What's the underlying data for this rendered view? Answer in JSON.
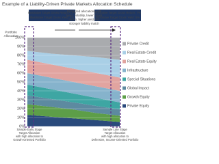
{
  "chart_data": {
    "type": "stacked_area",
    "title": "Example of a Liability-Driven Private Markets Allocation Schedule",
    "y_label": [
      "Portfolio",
      "Allocation"
    ],
    "left_box": [
      "Illustrative Target Gross Return: 10%",
      "Illustrative Target Gross Yield: 3%"
    ],
    "right_box": [
      "Illustrative Target Gross Return: 7%",
      "Illustrative Target Gross Yield: 5%"
    ],
    "middle_note": [
      "Optimized allocations with",
      "lower volatility, lower target",
      "return, higher yield and",
      "stronger liability match"
    ],
    "left_caption": [
      "Sample Early Stage",
      "Target Allocation",
      "with high allocation to",
      "Growth-Oriented Portfolio"
    ],
    "right_caption": [
      "Sample Late Stage",
      "Target Allocation",
      "with high allocation to",
      "Defensive, Income-Oriented Portfolio"
    ],
    "categories": [
      null,
      null,
      null,
      null,
      null
    ],
    "series": [
      {
        "name": "Private Credit",
        "color": "#a9abae",
        "values": [
          15,
          18,
          20,
          22,
          25
        ]
      },
      {
        "name": "Real Estate Credit",
        "color": "#a9cfe6",
        "values": [
          10,
          12,
          15,
          18,
          20
        ]
      },
      {
        "name": "Real Estate Equity",
        "color": "#e1a4a0",
        "values": [
          15,
          15,
          15,
          15,
          15
        ]
      },
      {
        "name": "Infrastructure",
        "color": "#86b3cc",
        "values": [
          13,
          13,
          13,
          13,
          13
        ]
      },
      {
        "name": "Special Situations",
        "color": "#3ea6a3",
        "values": [
          12,
          11,
          10,
          9,
          8
        ]
      },
      {
        "name": "Global Impact",
        "color": "#5d8aa0",
        "values": [
          10,
          9,
          8,
          8,
          7
        ]
      },
      {
        "name": "Growth Equity",
        "color": "#5d9e48",
        "values": [
          12,
          11,
          10,
          8,
          7
        ]
      },
      {
        "name": "Private Equity",
        "color": "#2a4a7c",
        "values": [
          13,
          11,
          9,
          7,
          5
        ]
      }
    ],
    "ylim": [
      0,
      100
    ],
    "yticks": [
      {
        "value": 0,
        "label": "0%"
      },
      {
        "value": 10,
        "label": "10%"
      },
      {
        "value": 20,
        "label": "20%"
      },
      {
        "value": 30,
        "label": "30%"
      },
      {
        "value": 40,
        "label": "40%"
      },
      {
        "value": 50,
        "label": "50%"
      },
      {
        "value": 60,
        "label": "60%"
      },
      {
        "value": 70,
        "label": "70%"
      },
      {
        "value": 80,
        "label": "80%"
      },
      {
        "value": 90,
        "label": "90%"
      },
      {
        "value": 100,
        "label": "100%"
      }
    ],
    "grid": true
  }
}
